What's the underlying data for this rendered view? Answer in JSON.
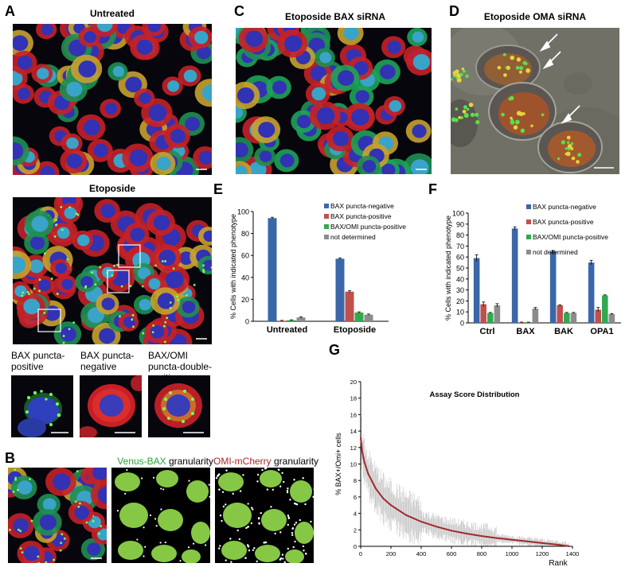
{
  "panels": {
    "A": {
      "label": "A",
      "top_title": "Untreated",
      "bottom_title": "Etoposide",
      "insets": [
        {
          "caption": "BAX puncta-positive"
        },
        {
          "caption": "BAX puncta-negative"
        },
        {
          "caption": "BAX/OMI puncta-double-positive"
        }
      ]
    },
    "B": {
      "label": "B",
      "venus_title_colored": "Venus-BAX",
      "venus_title_rest": " granularity",
      "omi_title_colored": "OMI-mCherry",
      "omi_title_rest": " granularity"
    },
    "C": {
      "label": "C",
      "title": "Etoposide BAX siRNA"
    },
    "D": {
      "label": "D",
      "title": "Etoposide OMA siRNA"
    },
    "E": {
      "label": "E"
    },
    "F": {
      "label": "F"
    },
    "G": {
      "label": "G"
    }
  },
  "colors": {
    "blue": "#3b67a8",
    "red": "#c0504d",
    "green": "#2faa4f",
    "gray": "#8c8c8c",
    "curve": "#a1282c",
    "venus": "#2aa336",
    "omi": "#b02227"
  },
  "chart_data": [
    {
      "id": "E",
      "type": "bar",
      "categories": [
        "Untreated",
        "Etoposide"
      ],
      "series": [
        {
          "name": "BAX puncta-negative",
          "values": [
            94,
            57
          ]
        },
        {
          "name": "BAX puncta-positive",
          "values": [
            0.5,
            27
          ]
        },
        {
          "name": "BAX/OMI puncta-positive",
          "values": [
            1,
            8
          ]
        },
        {
          "name": "not determined",
          "values": [
            3.5,
            6
          ]
        }
      ],
      "errors": [
        [
          0.8,
          0.8
        ],
        [
          0.3,
          0.8
        ],
        [
          0.3,
          0.6
        ],
        [
          0.5,
          0.6
        ]
      ],
      "ylabel": "% Cells with indicated phenotype",
      "ylim": [
        0,
        100
      ],
      "yticks": [
        "0",
        "20",
        "40",
        "60",
        "80",
        "100"
      ],
      "legend": "top-right"
    },
    {
      "id": "F",
      "type": "bar",
      "categories": [
        "Ctrl",
        "BAX",
        "BAK",
        "OPA1"
      ],
      "series": [
        {
          "name": "BAX puncta-negative",
          "values": [
            59,
            86,
            65,
            55
          ]
        },
        {
          "name": "BAX puncta-positive",
          "values": [
            17,
            0.5,
            16,
            12
          ]
        },
        {
          "name": "BAX/OMI puncta-positive",
          "values": [
            9,
            0.5,
            9,
            25
          ]
        },
        {
          "name": "not determined",
          "values": [
            16,
            13,
            9,
            8
          ]
        }
      ],
      "errors": [
        [
          3,
          1.5,
          1,
          2
        ],
        [
          2,
          0.2,
          0.5,
          2
        ],
        [
          0.5,
          0.2,
          0.5,
          0.5
        ],
        [
          1.5,
          1,
          0.5,
          0.5
        ]
      ],
      "ylabel": "% Cells with indicated phenotype",
      "ylim": [
        0,
        100
      ],
      "yticks": [
        "0",
        "10",
        "20",
        "30",
        "40",
        "50",
        "60",
        "70",
        "80",
        "90",
        "100"
      ],
      "legend": "top-right"
    },
    {
      "id": "G",
      "type": "line",
      "title": "Assay Score Distribution",
      "xlabel": "Rank",
      "ylabel": "% BAX+/Omi+ cells",
      "xlim": [
        0,
        1400
      ],
      "ylim": [
        0,
        20
      ],
      "xticks": [
        "0",
        "200",
        "400",
        "600",
        "800",
        "1000",
        "1200",
        "1400"
      ],
      "yticks": [
        "0",
        "2",
        "4",
        "6",
        "8",
        "10",
        "12",
        "14",
        "16",
        "18",
        "20"
      ],
      "x": [
        0,
        10,
        25,
        50,
        75,
        100,
        150,
        200,
        300,
        400,
        500,
        600,
        700,
        800,
        900,
        1000,
        1100,
        1200,
        1300,
        1380
      ],
      "y": [
        13.2,
        11.5,
        10.2,
        8.8,
        7.9,
        7.0,
        5.8,
        5.0,
        3.8,
        3.0,
        2.4,
        1.9,
        1.55,
        1.25,
        1.0,
        0.8,
        0.6,
        0.4,
        0.2,
        0.0
      ]
    }
  ]
}
